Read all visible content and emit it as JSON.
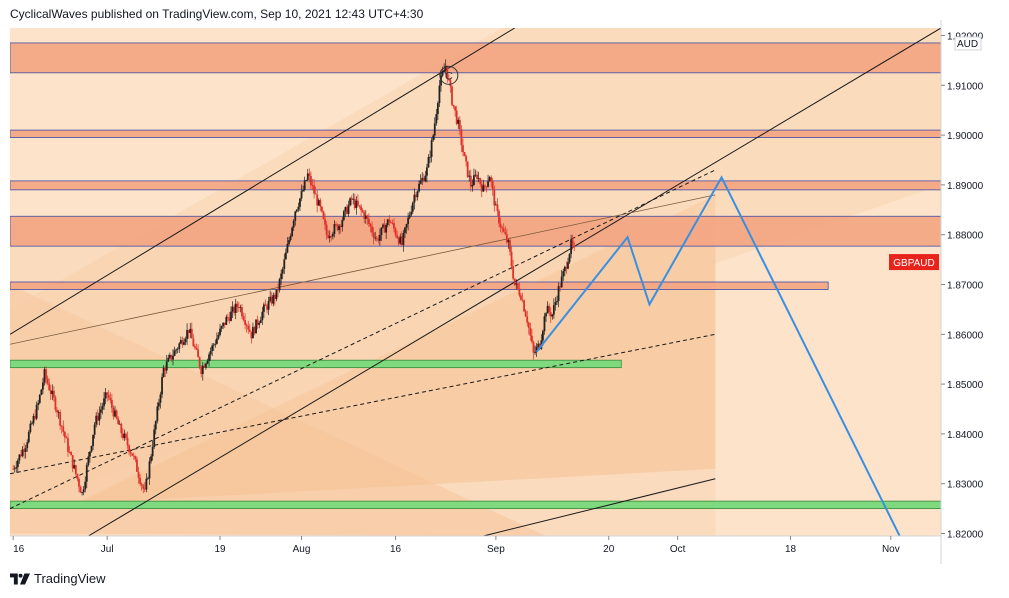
{
  "header": {
    "publisher_line": "CyclicalWaves published on TradingView.com, Sep 10, 2021 12:43 UTC+4:30"
  },
  "footer": {
    "brand": "TradingView"
  },
  "chart_data": {
    "type": "candlestick",
    "symbol": "GBPAUD",
    "currency": "AUD",
    "y_axis": {
      "ticks": [
        "1.92000",
        "1.91000",
        "1.90000",
        "1.89000",
        "1.88000",
        "1.87000",
        "1.86000",
        "1.85000",
        "1.84000",
        "1.83000",
        "1.82000"
      ],
      "range": [
        1.8195,
        1.9215
      ]
    },
    "x_axis": {
      "labels": [
        "16",
        "Jul",
        "19",
        "Aug",
        "16",
        "Sep",
        "20",
        "Oct",
        "18",
        "Nov"
      ],
      "label_days": [
        0,
        15,
        33,
        46,
        61,
        77,
        95,
        106,
        124,
        140
      ],
      "range_days": [
        -0.5,
        148
      ],
      "start_date": "2021-06-16"
    },
    "last_price_label": "GBPAUD",
    "price_path": [
      {
        "d": 0,
        "p": 1.833
      },
      {
        "d": 2,
        "p": 1.838
      },
      {
        "d": 4,
        "p": 1.846
      },
      {
        "d": 5,
        "p": 1.852
      },
      {
        "d": 7,
        "p": 1.845
      },
      {
        "d": 9,
        "p": 1.836
      },
      {
        "d": 11,
        "p": 1.828
      },
      {
        "d": 13,
        "p": 1.842
      },
      {
        "d": 15,
        "p": 1.848
      },
      {
        "d": 17,
        "p": 1.841
      },
      {
        "d": 19,
        "p": 1.836
      },
      {
        "d": 21,
        "p": 1.828
      },
      {
        "d": 22,
        "p": 1.836
      },
      {
        "d": 24,
        "p": 1.853
      },
      {
        "d": 26,
        "p": 1.857
      },
      {
        "d": 28,
        "p": 1.861
      },
      {
        "d": 30,
        "p": 1.853
      },
      {
        "d": 32,
        "p": 1.858
      },
      {
        "d": 34,
        "p": 1.863
      },
      {
        "d": 36,
        "p": 1.866
      },
      {
        "d": 38,
        "p": 1.86
      },
      {
        "d": 40,
        "p": 1.865
      },
      {
        "d": 42,
        "p": 1.868
      },
      {
        "d": 43,
        "p": 1.873
      },
      {
        "d": 45,
        "p": 1.885
      },
      {
        "d": 46,
        "p": 1.888
      },
      {
        "d": 47,
        "p": 1.892
      },
      {
        "d": 49,
        "p": 1.885
      },
      {
        "d": 50,
        "p": 1.88
      },
      {
        "d": 52,
        "p": 1.882
      },
      {
        "d": 54,
        "p": 1.887
      },
      {
        "d": 56,
        "p": 1.884
      },
      {
        "d": 58,
        "p": 1.879
      },
      {
        "d": 60,
        "p": 1.883
      },
      {
        "d": 62,
        "p": 1.878
      },
      {
        "d": 64,
        "p": 1.888
      },
      {
        "d": 66,
        "p": 1.893
      },
      {
        "d": 67,
        "p": 1.9
      },
      {
        "d": 68,
        "p": 1.91
      },
      {
        "d": 69,
        "p": 1.914
      },
      {
        "d": 70,
        "p": 1.907
      },
      {
        "d": 71,
        "p": 1.902
      },
      {
        "d": 72,
        "p": 1.895
      },
      {
        "d": 73,
        "p": 1.89
      },
      {
        "d": 74,
        "p": 1.892
      },
      {
        "d": 75,
        "p": 1.889
      },
      {
        "d": 76,
        "p": 1.892
      },
      {
        "d": 77,
        "p": 1.885
      },
      {
        "d": 78,
        "p": 1.881
      },
      {
        "d": 79,
        "p": 1.878
      },
      {
        "d": 80,
        "p": 1.87
      },
      {
        "d": 81,
        "p": 1.868
      },
      {
        "d": 82,
        "p": 1.863
      },
      {
        "d": 83,
        "p": 1.856
      },
      {
        "d": 84,
        "p": 1.858
      },
      {
        "d": 85,
        "p": 1.865
      },
      {
        "d": 86,
        "p": 1.864
      },
      {
        "d": 87,
        "p": 1.869
      },
      {
        "d": 88,
        "p": 1.873
      },
      {
        "d": 89,
        "p": 1.878
      },
      {
        "d": 89.7,
        "p": 1.876
      }
    ],
    "drawings": {
      "resistance_zones": [
        {
          "top": 1.9185,
          "bottom": 1.9125,
          "color": "#f4a582"
        },
        {
          "top": 1.901,
          "bottom": 1.8995,
          "color": "#f4a582"
        },
        {
          "top": 1.8908,
          "bottom": 1.889,
          "color": "#f4a582"
        },
        {
          "top": 1.8837,
          "bottom": 1.8777,
          "color": "#f4a582"
        },
        {
          "top": 1.8705,
          "bottom": 1.869,
          "color": "#f4a582"
        }
      ],
      "support_zones": [
        {
          "top": 1.8548,
          "bottom": 1.8533,
          "color": "#7fd97f"
        },
        {
          "top": 1.8265,
          "bottom": 1.825,
          "color": "#7fd97f"
        }
      ],
      "projection_path": [
        {
          "d": 83.5,
          "p": 1.8565
        },
        {
          "d": 98,
          "p": 1.8795
        },
        {
          "d": 101.5,
          "p": 1.866
        },
        {
          "d": 113,
          "p": 1.8915
        },
        {
          "d": 142,
          "p": 1.818
        }
      ],
      "marker_label": "C"
    }
  }
}
